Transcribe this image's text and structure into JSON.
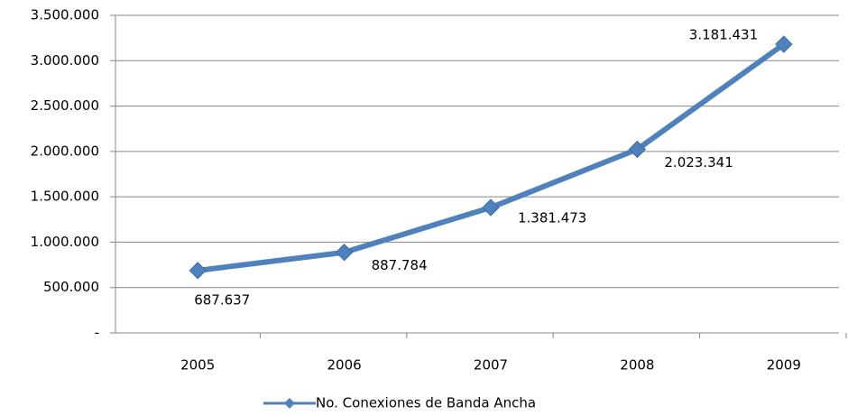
{
  "chart_data": {
    "type": "line",
    "categories": [
      "2005",
      "2006",
      "2007",
      "2008",
      "2009"
    ],
    "series": [
      {
        "name": "No. Conexiones de Banda Ancha",
        "color": "#4f81bd",
        "values": [
          687637,
          887784,
          1381473,
          2023341,
          3181431
        ],
        "value_labels": [
          "687.637",
          "887.784",
          "1.381.473",
          "2.023.341",
          "3.181.431"
        ]
      }
    ],
    "ylim": [
      0,
      3500000
    ],
    "yticks": [
      {
        "value": 0,
        "label": "-"
      },
      {
        "value": 500000,
        "label": "500.000"
      },
      {
        "value": 1000000,
        "label": "1.000.000"
      },
      {
        "value": 1500000,
        "label": "1.500.000"
      },
      {
        "value": 2000000,
        "label": "2.000.000"
      },
      {
        "value": 2500000,
        "label": "2.500.000"
      },
      {
        "value": 3000000,
        "label": "3.000.000"
      },
      {
        "value": 3500000,
        "label": "3.500.000"
      }
    ],
    "grid": true,
    "legend": "bottom"
  }
}
